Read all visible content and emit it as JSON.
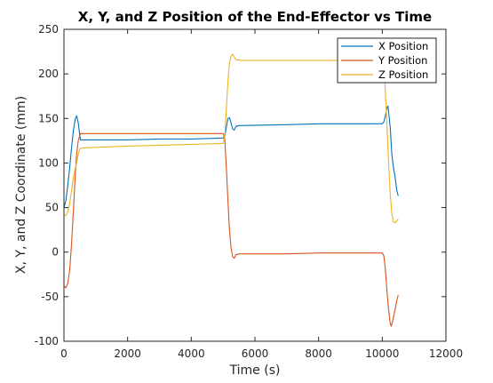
{
  "chart_data": {
    "type": "line",
    "title": "X, Y, and Z Position of the End-Effector vs Time",
    "xlabel": "Time (s)",
    "ylabel": "X, Y, and Z Coordinate (mm)",
    "xlim": [
      0,
      12000
    ],
    "ylim": [
      -100,
      250
    ],
    "xticks": [
      0,
      2000,
      4000,
      6000,
      8000,
      10000,
      12000
    ],
    "yticks": [
      -100,
      -50,
      0,
      50,
      100,
      150,
      200,
      250
    ],
    "grid": false,
    "legend_position": "top-right",
    "series": [
      {
        "name": "X Position",
        "color": "#0072BD",
        "points": [
          [
            0,
            50
          ],
          [
            60,
            58
          ],
          [
            120,
            75
          ],
          [
            180,
            95
          ],
          [
            240,
            118
          ],
          [
            300,
            138
          ],
          [
            360,
            150
          ],
          [
            400,
            153
          ],
          [
            450,
            145
          ],
          [
            500,
            130
          ],
          [
            520,
            126
          ],
          [
            700,
            126
          ],
          [
            2000,
            126
          ],
          [
            3000,
            127
          ],
          [
            4000,
            127
          ],
          [
            5000,
            128
          ],
          [
            5050,
            130
          ],
          [
            5100,
            140
          ],
          [
            5150,
            150
          ],
          [
            5200,
            151
          ],
          [
            5250,
            145
          ],
          [
            5300,
            138
          ],
          [
            5350,
            137
          ],
          [
            5400,
            141
          ],
          [
            5500,
            142
          ],
          [
            7000,
            143
          ],
          [
            8000,
            144
          ],
          [
            9000,
            144
          ],
          [
            10000,
            144
          ],
          [
            10050,
            146
          ],
          [
            10100,
            153
          ],
          [
            10150,
            162
          ],
          [
            10180,
            164
          ],
          [
            10250,
            140
          ],
          [
            10300,
            110
          ],
          [
            10350,
            95
          ],
          [
            10400,
            85
          ],
          [
            10450,
            70
          ],
          [
            10500,
            63
          ]
        ]
      },
      {
        "name": "Y Position",
        "color": "#D95319",
        "points": [
          [
            0,
            -38
          ],
          [
            60,
            -40
          ],
          [
            120,
            -35
          ],
          [
            180,
            -20
          ],
          [
            240,
            10
          ],
          [
            300,
            50
          ],
          [
            360,
            90
          ],
          [
            400,
            110
          ],
          [
            450,
            125
          ],
          [
            520,
            133
          ],
          [
            1000,
            133
          ],
          [
            2000,
            133
          ],
          [
            3000,
            133
          ],
          [
            4000,
            133
          ],
          [
            5000,
            133
          ],
          [
            5050,
            128
          ],
          [
            5100,
            95
          ],
          [
            5150,
            60
          ],
          [
            5200,
            25
          ],
          [
            5250,
            5
          ],
          [
            5300,
            -5
          ],
          [
            5350,
            -7
          ],
          [
            5400,
            -3
          ],
          [
            5500,
            -2
          ],
          [
            7000,
            -2
          ],
          [
            8000,
            -1
          ],
          [
            9000,
            -1
          ],
          [
            10000,
            -1
          ],
          [
            10050,
            -4
          ],
          [
            10100,
            -20
          ],
          [
            10150,
            -45
          ],
          [
            10200,
            -65
          ],
          [
            10250,
            -80
          ],
          [
            10280,
            -83
          ],
          [
            10320,
            -78
          ],
          [
            10400,
            -65
          ],
          [
            10450,
            -55
          ],
          [
            10500,
            -48
          ]
        ]
      },
      {
        "name": "Z Position",
        "color": "#EDB120",
        "points": [
          [
            0,
            42
          ],
          [
            60,
            41
          ],
          [
            120,
            45
          ],
          [
            180,
            55
          ],
          [
            240,
            70
          ],
          [
            300,
            85
          ],
          [
            360,
            95
          ],
          [
            400,
            100
          ],
          [
            450,
            110
          ],
          [
            500,
            116
          ],
          [
            600,
            117
          ],
          [
            2000,
            119
          ],
          [
            3000,
            120
          ],
          [
            4000,
            121
          ],
          [
            5000,
            122
          ],
          [
            5050,
            130
          ],
          [
            5100,
            160
          ],
          [
            5150,
            190
          ],
          [
            5200,
            212
          ],
          [
            5250,
            220
          ],
          [
            5300,
            222
          ],
          [
            5350,
            219
          ],
          [
            5400,
            216
          ],
          [
            5600,
            215
          ],
          [
            7000,
            215
          ],
          [
            8000,
            215
          ],
          [
            9000,
            215
          ],
          [
            10000,
            214
          ],
          [
            10050,
            205
          ],
          [
            10100,
            180
          ],
          [
            10150,
            140
          ],
          [
            10200,
            100
          ],
          [
            10250,
            65
          ],
          [
            10300,
            43
          ],
          [
            10350,
            34
          ],
          [
            10400,
            33
          ],
          [
            10450,
            35
          ],
          [
            10500,
            37
          ]
        ]
      }
    ]
  }
}
